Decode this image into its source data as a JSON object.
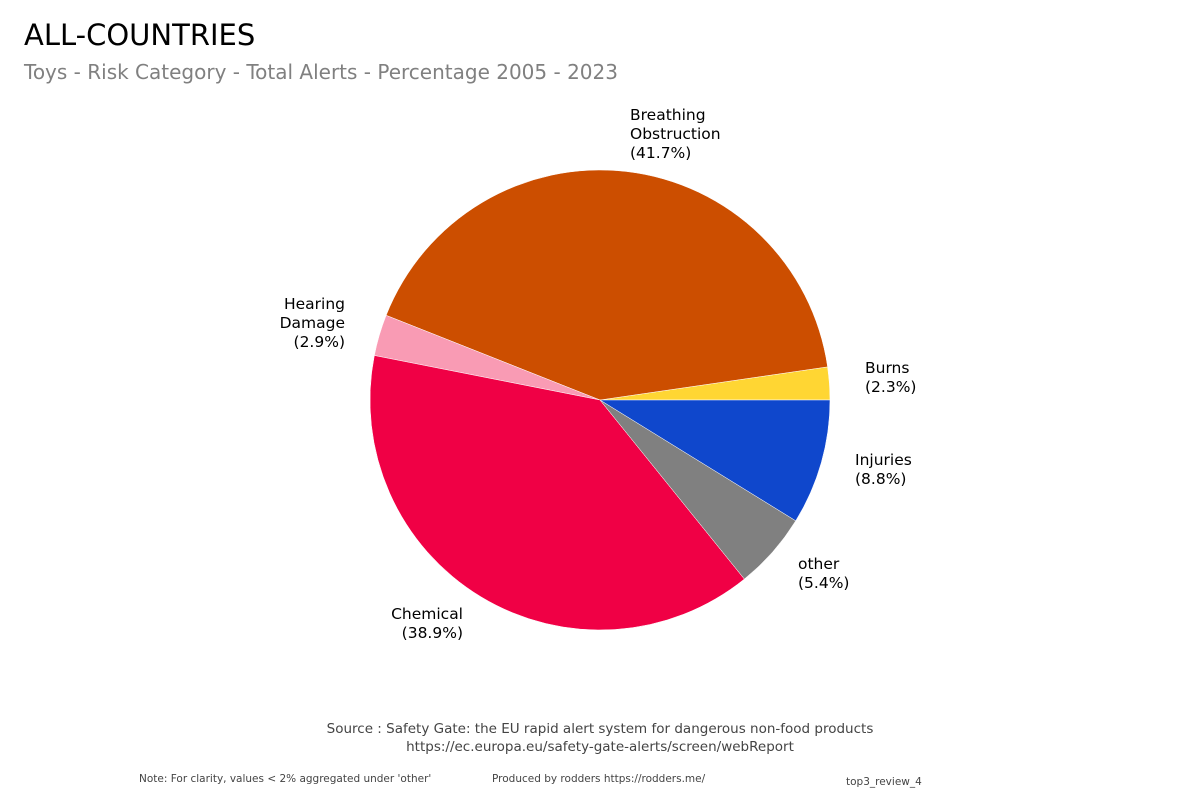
{
  "header": {
    "title": "ALL-COUNTRIES",
    "subtitle": "Toys - Risk Category - Total Alerts - Percentage 2005 - 2023"
  },
  "chart_data": {
    "type": "pie",
    "title": "ALL-COUNTRIES",
    "subtitle": "Toys - Risk Category - Total Alerts - Percentage 2005 - 2023",
    "start_angle": "east, counter-clockwise",
    "slices": [
      {
        "label": "Burns",
        "value": 2.3,
        "color": "#FFD633"
      },
      {
        "label": "Breathing\nObstruction",
        "value": 41.7,
        "color": "#CC4E00"
      },
      {
        "label": "Hearing\nDamage",
        "value": 2.9,
        "color": "#F99BB4"
      },
      {
        "label": "Chemical",
        "value": 38.9,
        "color": "#F00045"
      },
      {
        "label": "other",
        "value": 5.4,
        "color": "#808080"
      },
      {
        "label": "Injuries",
        "value": 8.8,
        "color": "#0F47CC"
      }
    ]
  },
  "footer": {
    "source_line1": "Source : Safety Gate: the EU rapid alert system for dangerous non-food products",
    "source_line2": "https://ec.europa.eu/safety-gate-alerts/screen/webReport",
    "note": "Note: For clarity, values < 2% aggregated under 'other'",
    "produced_by": "Produced by rodders https://rodders.me/",
    "tag": "top3_review_4"
  }
}
